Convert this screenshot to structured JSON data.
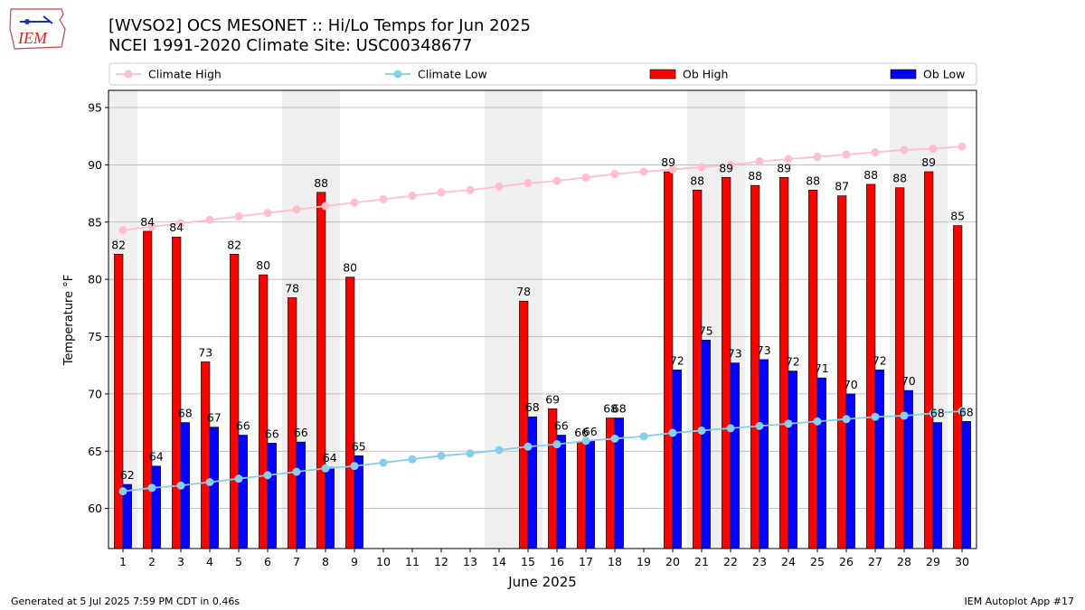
{
  "header": {
    "title_line1": "[WVSO2] OCS MESONET :: Hi/Lo Temps for Jun 2025",
    "title_line2": "NCEI 1991-2020 Climate Site: USC00348677",
    "logo_text": "IEM"
  },
  "footer": {
    "generated": "Generated at 5 Jul 2025 7:59 PM CDT in 0.46s",
    "app": "IEM Autoplot App #17"
  },
  "colors": {
    "ob_high": "#ff0000",
    "ob_low": "#0000ff",
    "climate_high": "#ffc0cb",
    "climate_low": "#87ceeb",
    "weekend_shade": "#efefef",
    "grid": "#b0b0b0"
  },
  "chart_data": {
    "type": "bar",
    "xlabel": "June 2025",
    "ylabel": "Temperature °F",
    "ylim": [
      56.5,
      96.5
    ],
    "yticks": [
      60,
      65,
      70,
      75,
      80,
      85,
      90,
      95
    ],
    "grid": "horizontal",
    "legend_position": "top",
    "categories": [
      "1",
      "2",
      "3",
      "4",
      "5",
      "6",
      "7",
      "8",
      "9",
      "10",
      "11",
      "12",
      "13",
      "14",
      "15",
      "16",
      "17",
      "18",
      "19",
      "20",
      "21",
      "22",
      "23",
      "24",
      "25",
      "26",
      "27",
      "28",
      "29",
      "30"
    ],
    "weekend_days": [
      1,
      7,
      8,
      14,
      15,
      21,
      22,
      28,
      29
    ],
    "series": [
      {
        "name": "Ob High",
        "kind": "bar",
        "values": [
          82.2,
          84.2,
          83.7,
          72.8,
          82.2,
          80.4,
          78.4,
          87.6,
          80.2,
          null,
          null,
          null,
          null,
          null,
          78.1,
          68.7,
          65.8,
          67.9,
          null,
          89.4,
          87.8,
          88.9,
          88.2,
          88.9,
          87.8,
          87.3,
          88.3,
          88.0,
          89.4,
          84.7
        ],
        "labels": [
          "82",
          "84",
          "84",
          "73",
          "82",
          "80",
          "78",
          "88",
          "80",
          "",
          "",
          "",
          "",
          "",
          "78",
          "69",
          "66",
          "68",
          "",
          "89",
          "88",
          "89",
          "88",
          "89",
          "88",
          "87",
          "88",
          "88",
          "89",
          "85"
        ]
      },
      {
        "name": "Ob Low",
        "kind": "bar",
        "values": [
          62.1,
          63.7,
          67.5,
          67.1,
          66.4,
          65.7,
          65.8,
          63.6,
          64.6,
          null,
          null,
          null,
          null,
          null,
          68.0,
          66.4,
          65.9,
          67.9,
          null,
          72.1,
          74.7,
          72.7,
          73.0,
          72.0,
          71.4,
          70.0,
          72.1,
          70.3,
          67.5,
          67.6
        ],
        "labels": [
          "62",
          "64",
          "68",
          "67",
          "66",
          "66",
          "66",
          "64",
          "65",
          "",
          "",
          "",
          "",
          "",
          "68",
          "66",
          "66",
          "68",
          "",
          "72",
          "75",
          "73",
          "73",
          "72",
          "71",
          "70",
          "72",
          "70",
          "68",
          "68"
        ]
      },
      {
        "name": "Climate High",
        "kind": "line",
        "values": [
          84.3,
          84.6,
          84.9,
          85.2,
          85.5,
          85.8,
          86.1,
          86.4,
          86.7,
          87.0,
          87.3,
          87.6,
          87.8,
          88.1,
          88.4,
          88.6,
          88.9,
          89.2,
          89.4,
          89.6,
          89.8,
          90.0,
          90.3,
          90.5,
          90.7,
          90.9,
          91.1,
          91.3,
          91.4,
          91.6
        ]
      },
      {
        "name": "Climate Low",
        "kind": "line",
        "values": [
          61.5,
          61.8,
          62.0,
          62.3,
          62.6,
          62.9,
          63.2,
          63.5,
          63.7,
          64.0,
          64.3,
          64.6,
          64.8,
          65.1,
          65.4,
          65.6,
          65.9,
          66.1,
          66.3,
          66.6,
          66.8,
          67.0,
          67.2,
          67.4,
          67.6,
          67.8,
          68.0,
          68.1,
          68.3,
          68.5
        ]
      }
    ]
  }
}
